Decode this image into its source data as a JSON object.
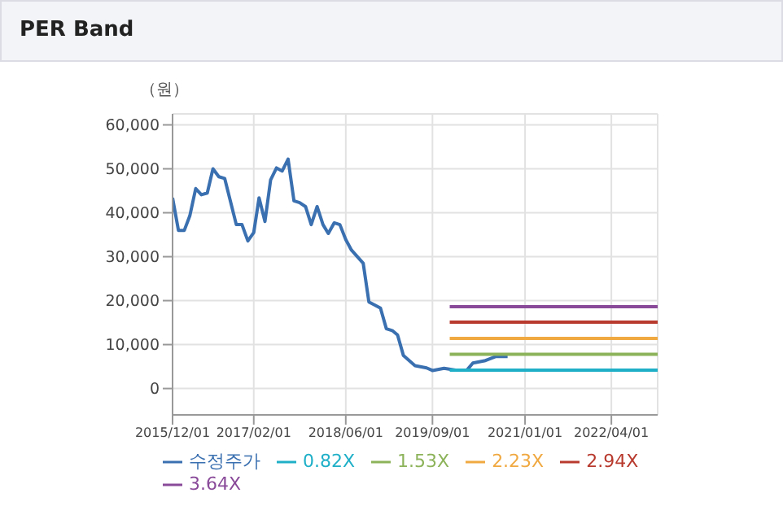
{
  "chart_data": {
    "type": "line",
    "title": "PER Band",
    "ylabel": "（원）",
    "xlim": [
      "2015-12-01",
      "2022-12-01"
    ],
    "xticks": [
      {
        "value": "2015-12-01",
        "label": "2015/12/01"
      },
      {
        "value": "2017-02-01",
        "label": "2017/02/01"
      },
      {
        "value": "2018-06-01",
        "label": "2018/06/01"
      },
      {
        "value": "2019-09-01",
        "label": "2019/09/01"
      },
      {
        "value": "2021-01-01",
        "label": "2021/01/01"
      },
      {
        "value": "2022-04-01",
        "label": "2022/04/01"
      }
    ],
    "ylim": [
      -6000,
      62500
    ],
    "yticks": [
      {
        "value": 0,
        "label": "0"
      },
      {
        "value": 10000,
        "label": "10,000"
      },
      {
        "value": 20000,
        "label": "20,000"
      },
      {
        "value": 30000,
        "label": "30,000"
      },
      {
        "value": 40000,
        "label": "40,000"
      },
      {
        "value": 50000,
        "label": "50,000"
      },
      {
        "value": 60000,
        "label": "60,000"
      }
    ],
    "grid": true,
    "legend": "bottom",
    "marker": "none",
    "line_style": "solid",
    "series": [
      {
        "name": "수정주가",
        "color": "#3a6fb0",
        "x": [
          "2015-12-01",
          "2016-01-01",
          "2016-02-01",
          "2016-03-01",
          "2016-04-01",
          "2016-05-01",
          "2016-06-01",
          "2016-07-01",
          "2016-08-01",
          "2016-09-01",
          "2016-11-01",
          "2016-12-01",
          "2017-01-01",
          "2017-02-01",
          "2017-03-01",
          "2017-04-01",
          "2017-05-01",
          "2017-06-01",
          "2017-07-01",
          "2017-08-01",
          "2017-09-01",
          "2017-10-01",
          "2017-11-01",
          "2017-12-01",
          "2018-01-01",
          "2018-02-01",
          "2018-03-01",
          "2018-04-01",
          "2018-05-01",
          "2018-06-01",
          "2018-07-01",
          "2018-09-01",
          "2018-10-01",
          "2018-11-01",
          "2018-12-01",
          "2019-01-01",
          "2019-02-01",
          "2019-03-01",
          "2019-04-01",
          "2019-06-01",
          "2019-08-01",
          "2019-09-01",
          "2019-11-01",
          "2020-01-01",
          "2020-03-01",
          "2020-04-01",
          "2020-06-01",
          "2020-08-01",
          "2020-10-01"
        ],
        "values": [
          43400,
          36000,
          36000,
          39300,
          45500,
          44100,
          44500,
          50000,
          48200,
          47800,
          37300,
          37300,
          33600,
          35500,
          43400,
          38000,
          47500,
          50200,
          49500,
          52200,
          42700,
          42300,
          41400,
          37300,
          41400,
          37300,
          35300,
          37700,
          37300,
          33900,
          31500,
          28500,
          19700,
          19000,
          18300,
          13600,
          13200,
          12200,
          7500,
          5200,
          4700,
          4100,
          4600,
          4200,
          4200,
          5800,
          6300,
          7300,
          7300
        ]
      },
      {
        "name": "0.82X",
        "color": "#1fb0c8",
        "x": [
          "2019-12-01",
          "2022-12-01"
        ],
        "values": [
          4200,
          4200
        ]
      },
      {
        "name": "1.53X",
        "color": "#8db35a",
        "x": [
          "2019-12-01",
          "2022-12-01"
        ],
        "values": [
          7800,
          7800
        ]
      },
      {
        "name": "2.23X",
        "color": "#f0a840",
        "x": [
          "2019-12-01",
          "2022-12-01"
        ],
        "values": [
          11400,
          11400
        ]
      },
      {
        "name": "2.94X",
        "color": "#b83a2e",
        "x": [
          "2019-12-01",
          "2022-12-01"
        ],
        "values": [
          15100,
          15100
        ]
      },
      {
        "name": "3.64X",
        "color": "#8a4a9a",
        "x": [
          "2019-12-01",
          "2022-12-01"
        ],
        "values": [
          18600,
          18600
        ]
      }
    ]
  }
}
